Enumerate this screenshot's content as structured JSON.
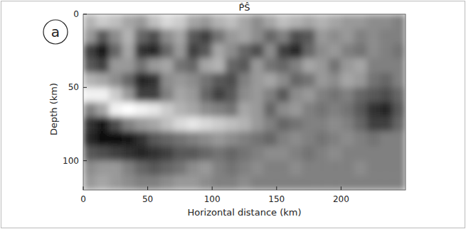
{
  "chart_data": {
    "type": "heatmap",
    "title": "P̂Ŝ",
    "panel_label": "a",
    "x_label": "Horizontal distance (km)",
    "y_label": "Depth (km)",
    "xlim": [
      0,
      250
    ],
    "ylim": [
      0,
      120
    ],
    "xticks": [
      0,
      50,
      100,
      150,
      200
    ],
    "yticks": [
      0,
      50,
      100
    ],
    "color_range": [
      -1,
      1
    ],
    "x_bins": [
      0,
      10,
      20,
      30,
      40,
      50,
      60,
      70,
      80,
      90,
      100,
      110,
      120,
      130,
      140,
      150,
      160,
      170,
      180,
      190,
      200,
      210,
      220,
      230,
      240,
      250
    ],
    "y_bins": [
      0,
      10,
      20,
      30,
      40,
      50,
      60,
      70,
      80,
      90,
      100,
      110,
      120
    ],
    "cells": [
      [
        0.4,
        0.6,
        0.5,
        0.3,
        0.2,
        0.5,
        0.7,
        0.6,
        0.3,
        0.2,
        0.4,
        0.5,
        0.3,
        0.1,
        0.3,
        0.5,
        0.4,
        0.3,
        0.4,
        0.3,
        0.2,
        0.2,
        0.1,
        0.1,
        0
      ],
      [
        0.2,
        -0.3,
        0.1,
        0.4,
        -0.2,
        -0.4,
        0.1,
        0.3,
        -0.3,
        -0.5,
        -0.1,
        0.2,
        0.3,
        0.1,
        -0.2,
        0,
        -0.4,
        -0.3,
        0.2,
        0.1,
        0.2,
        0,
        0.1,
        0,
        0
      ],
      [
        -0.5,
        -0.8,
        -0.2,
        0.3,
        -0.6,
        -0.7,
        -0.2,
        0.2,
        -0.5,
        -0.3,
        0.3,
        0.1,
        -0.2,
        -0.4,
        0.1,
        -0.5,
        -0.7,
        -0.2,
        0.1,
        0.2,
        0,
        -0.1,
        0.1,
        0,
        -0.1
      ],
      [
        -0.3,
        -0.5,
        0.2,
        0.2,
        -0.1,
        0.2,
        0.3,
        -0.1,
        -0.2,
        0.3,
        0.4,
        -0.2,
        -0.3,
        0.2,
        -0.1,
        -0.2,
        0,
        0.3,
        0.2,
        -0.1,
        0.2,
        0.3,
        0,
        0,
        0
      ],
      [
        0.4,
        0.3,
        0.1,
        -0.2,
        -0.7,
        -0.6,
        0.1,
        0.2,
        0.1,
        -0.1,
        -0.3,
        -0.4,
        0,
        0.2,
        0.3,
        0.1,
        -0.2,
        -0.1,
        0.2,
        0.1,
        0.3,
        0.2,
        -0.1,
        -0.2,
        0
      ],
      [
        0.9,
        0.9,
        0.6,
        0.2,
        -0.5,
        -0.5,
        0,
        0.3,
        0.2,
        -0.2,
        -0.5,
        -0.3,
        0.1,
        0.2,
        0,
        -0.3,
        0.1,
        0.2,
        0,
        -0.1,
        0,
        -0.2,
        -0.3,
        -0.4,
        -0.2
      ],
      [
        0,
        0.3,
        0.9,
        1,
        0.9,
        0.8,
        0.6,
        0.4,
        0.3,
        0.1,
        0,
        -0.1,
        0.3,
        0.2,
        -0.2,
        0.1,
        0.2,
        0,
        -0.1,
        0,
        -0.1,
        -0.3,
        -0.6,
        -0.7,
        -0.3
      ],
      [
        -0.6,
        -0.8,
        -0.4,
        0,
        0.2,
        0.3,
        0.5,
        0.7,
        0.8,
        0.7,
        0.6,
        0.5,
        0.4,
        0.2,
        0,
        -0.2,
        -0.1,
        0,
        0,
        0.1,
        0,
        -0.2,
        -0.5,
        -0.5,
        -0.2
      ],
      [
        -0.7,
        -0.9,
        -0.9,
        -0.8,
        -0.6,
        -0.3,
        -0.2,
        -0.1,
        0,
        0.1,
        0.2,
        0.1,
        0,
        -0.1,
        -0.2,
        0,
        0.1,
        0,
        -0.1,
        0,
        0.1,
        0,
        -0.1,
        0,
        0
      ],
      [
        -0.3,
        -0.4,
        -0.5,
        -0.6,
        -0.7,
        -0.6,
        -0.5,
        -0.3,
        -0.3,
        -0.2,
        -0.1,
        -0.2,
        -0.1,
        0,
        0.1,
        0.1,
        0,
        -0.1,
        0,
        0.1,
        0,
        0,
        0,
        0,
        0
      ],
      [
        0.1,
        0.2,
        0.2,
        0,
        -0.2,
        -0.3,
        -0.2,
        -0.1,
        0.1,
        0.2,
        0,
        -0.1,
        0,
        0.1,
        0,
        0,
        0.1,
        0,
        0,
        0,
        0,
        0.1,
        0,
        0,
        0
      ],
      [
        0.2,
        0.3,
        0.2,
        0.1,
        0,
        0,
        0.1,
        0.2,
        0.2,
        0.1,
        0,
        0,
        0.1,
        0,
        0,
        0,
        0,
        0,
        0,
        0,
        0,
        0,
        0,
        0,
        0
      ]
    ]
  }
}
